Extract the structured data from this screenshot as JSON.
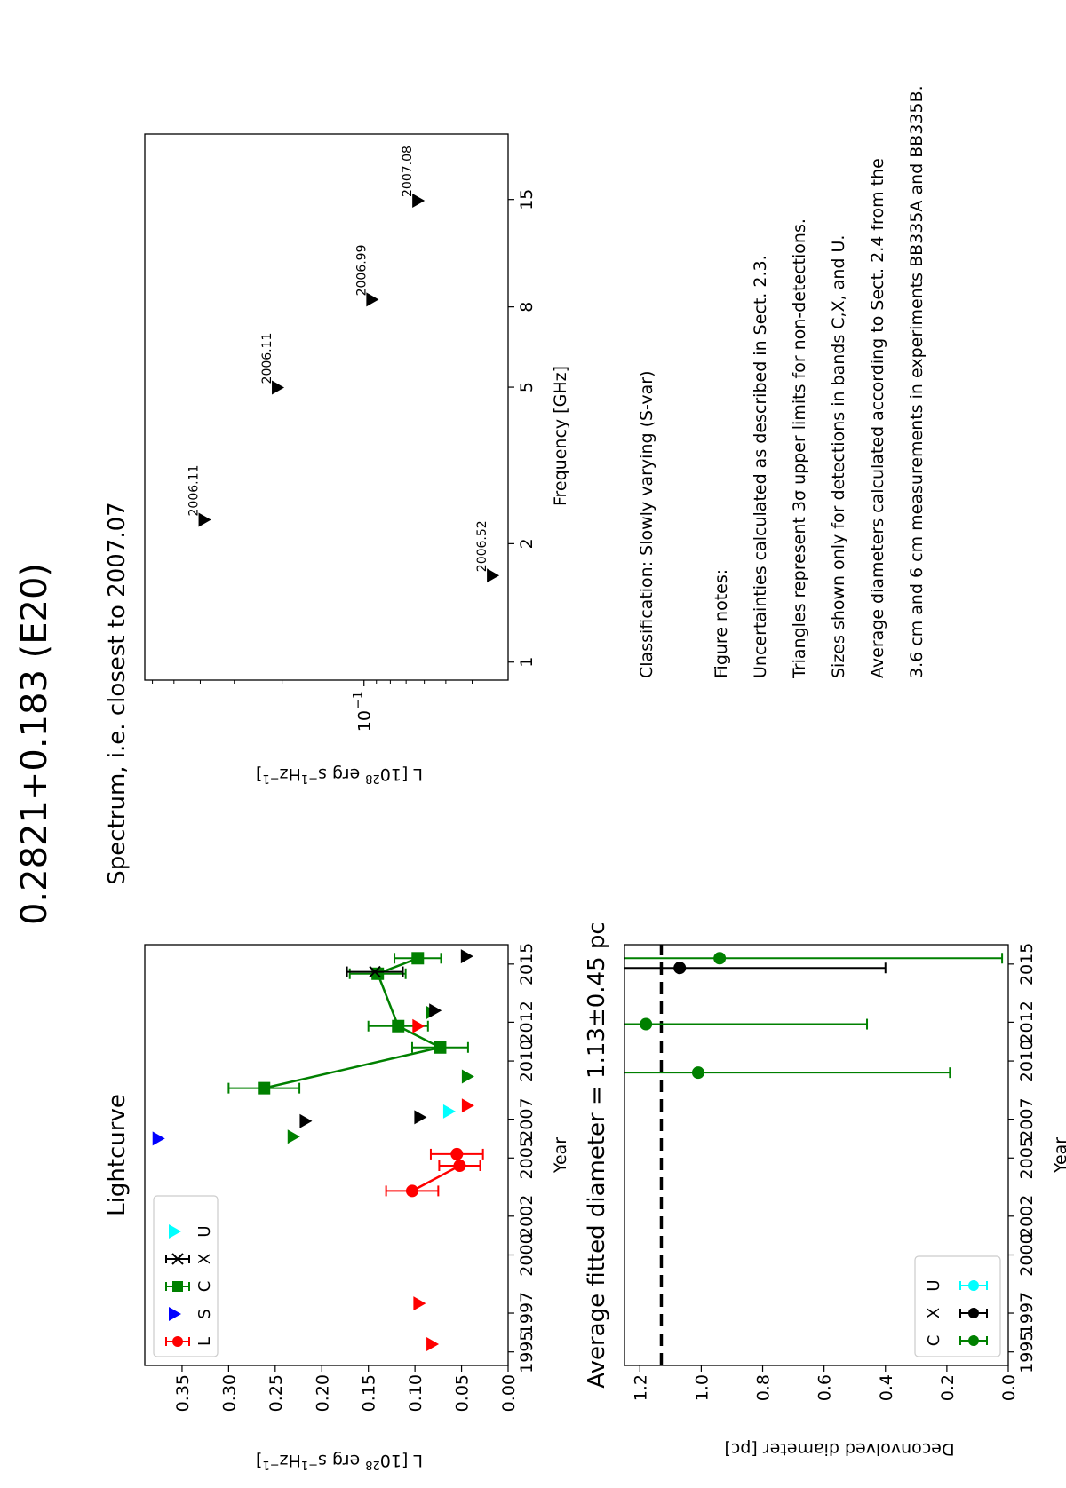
{
  "figure": {
    "title": "0.2821+0.183 (E20)",
    "orientation": "rotated 90 degrees counter-clockwise",
    "classification": "Classification: Slowly varying (S-var)",
    "notes_heading": "Figure notes:",
    "notes": [
      "Uncertainties calculated as described in Sect. 2.3.",
      "Triangles represent 3σ upper limits for non-detections.",
      "Sizes shown only for detections in bands C,X, and U.",
      "Average diameters calculated according to Sect. 2.4 from the",
      "3.6 cm and 6 cm measurements in experiments BB335A and BB335B."
    ]
  },
  "colors": {
    "L": "#ff0000",
    "S": "#0000ff",
    "C": "#008000",
    "X": "#000000",
    "U": "#00ffff"
  },
  "chart_data": [
    {
      "id": "lightcurve",
      "type": "scatter",
      "title": "Lightcurve",
      "xlabel": "Year",
      "ylabel": "L [10$^{28}$ erg s$^{-1}$Hz$^{-1}$]",
      "ylabel_parts": [
        "L [10",
        "28",
        " erg s",
        "−1",
        "Hz",
        "−1",
        "]"
      ],
      "xlim": [
        1994.3,
        2016.0
      ],
      "ylim": [
        0.0,
        0.39
      ],
      "xticks": [
        1995,
        1997,
        2000,
        2002,
        2005,
        2007,
        2010,
        2012,
        2015
      ],
      "yticks": [
        0.0,
        0.05,
        0.1,
        0.15,
        0.2,
        0.25,
        0.3,
        0.35
      ],
      "ytick_labels": [
        "0.00",
        "0.05",
        "0.10",
        "0.15",
        "0.20",
        "0.25",
        "0.30",
        "0.35"
      ],
      "legend": {
        "placement": "upper-left",
        "entries": [
          {
            "label": "L",
            "marker": "circle-errorbar",
            "band": "L"
          },
          {
            "label": "S",
            "marker": "triangle-down",
            "band": "S"
          },
          {
            "label": "C",
            "marker": "square-errorbar",
            "band": "C"
          },
          {
            "label": "X",
            "marker": "x-errorbar",
            "band": "X"
          },
          {
            "label": "U",
            "marker": "triangle-down",
            "band": "U"
          }
        ]
      },
      "series": [
        {
          "name": "L",
          "band": "L",
          "marker": "circle",
          "connected": true,
          "points": [
            {
              "x": 2003.3,
              "y": 0.103,
              "err": 0.028
            },
            {
              "x": 2004.6,
              "y": 0.052,
              "err": 0.022
            },
            {
              "x": 2005.2,
              "y": 0.055,
              "err": 0.028
            }
          ]
        },
        {
          "name": "C",
          "band": "C",
          "marker": "square",
          "connected": true,
          "points": [
            {
              "x": 2008.6,
              "y": 0.262,
              "err": 0.038
            },
            {
              "x": 2010.7,
              "y": 0.073,
              "err": 0.03
            },
            {
              "x": 2011.8,
              "y": 0.118,
              "err": 0.032
            },
            {
              "x": 2014.5,
              "y": 0.14,
              "err": 0.03
            },
            {
              "x": 2015.3,
              "y": 0.097,
              "err": 0.025
            }
          ]
        },
        {
          "name": "X",
          "band": "X",
          "marker": "x",
          "connected": false,
          "points": [
            {
              "x": 2014.6,
              "y": 0.143,
              "err": 0.03
            }
          ]
        }
      ],
      "upper_limits": [
        {
          "band": "L",
          "x": 1995.4,
          "y": 0.081
        },
        {
          "band": "L",
          "x": 1997.5,
          "y": 0.095
        },
        {
          "band": "L",
          "x": 2007.7,
          "y": 0.043
        },
        {
          "band": "L",
          "x": 2011.8,
          "y": 0.096
        },
        {
          "band": "S",
          "x": 2006.0,
          "y": 0.375
        },
        {
          "band": "C",
          "x": 2006.1,
          "y": 0.23
        },
        {
          "band": "C",
          "x": 2009.2,
          "y": 0.043
        },
        {
          "band": "C",
          "x": 2012.5,
          "y": 0.082
        },
        {
          "band": "X",
          "x": 2006.9,
          "y": 0.217
        },
        {
          "band": "X",
          "x": 2007.1,
          "y": 0.094
        },
        {
          "band": "X",
          "x": 2012.6,
          "y": 0.078
        },
        {
          "band": "X",
          "x": 2015.4,
          "y": 0.044
        },
        {
          "band": "U",
          "x": 2007.4,
          "y": 0.063
        }
      ]
    },
    {
      "id": "spectrum",
      "type": "scatter",
      "title": "Spectrum, i.e. closest to 2007.07",
      "xlabel": "Frequency [GHz]",
      "ylabel": "L [10$^{28}$ erg s$^{-1}$Hz$^{-1}$]",
      "ylabel_parts": [
        "L [10",
        "28",
        " erg s",
        "−1",
        "Hz",
        "−1",
        "]"
      ],
      "xscale": "log",
      "yscale": "log",
      "xlim": [
        0.9,
        22.0
      ],
      "ylim": [
        0.0295,
        0.64
      ],
      "xticks": [
        1,
        2,
        5,
        8,
        15
      ],
      "xtick_labels": [
        "1",
        "2",
        "5",
        "8",
        "15"
      ],
      "yticks_major": [
        0.1
      ],
      "ytick_major_label": "10",
      "ytick_major_exp": "−1",
      "yticks_minor": [
        0.04,
        0.05,
        0.06,
        0.07,
        0.08,
        0.09,
        0.2,
        0.3,
        0.4,
        0.5,
        0.6
      ],
      "upper_limits": [
        {
          "x": 1.66,
          "y": 0.0335,
          "label": "2006.52"
        },
        {
          "x": 2.3,
          "y": 0.385,
          "label": "2006.11"
        },
        {
          "x": 4.99,
          "y": 0.207,
          "label": "2006.11"
        },
        {
          "x": 8.35,
          "y": 0.093,
          "label": "2006.99"
        },
        {
          "x": 14.9,
          "y": 0.063,
          "label": "2007.08"
        }
      ]
    },
    {
      "id": "diameter",
      "type": "scatter",
      "title": "Average fitted diameter = 1.13±0.45 pc",
      "xlabel": "Year",
      "ylabel": "Deconvolved diameter [pc]",
      "xlim": [
        1994.3,
        2016.0
      ],
      "ylim": [
        0.0,
        1.25
      ],
      "xticks": [
        1995,
        1997,
        2000,
        2002,
        2005,
        2007,
        2010,
        2012,
        2015
      ],
      "yticks": [
        0.0,
        0.2,
        0.4,
        0.6,
        0.8,
        1.0,
        1.2
      ],
      "ytick_labels": [
        "0.0",
        "0.2",
        "0.4",
        "0.6",
        "0.8",
        "1.0",
        "1.2"
      ],
      "average": 1.13,
      "legend": {
        "placement": "lower-left",
        "entries": [
          {
            "label": "C",
            "band": "C"
          },
          {
            "label": "X",
            "band": "X"
          },
          {
            "label": "U",
            "band": "U"
          }
        ]
      },
      "series": [
        {
          "name": "C",
          "band": "C",
          "points": [
            {
              "x": 2009.4,
              "y": 1.01,
              "lo": 0.19,
              "hi": 1.4
            },
            {
              "x": 2011.9,
              "y": 1.18,
              "lo": 0.46,
              "hi": 1.6
            },
            {
              "x": 2015.3,
              "y": 0.94,
              "lo": 0.02,
              "hi": 1.4
            }
          ]
        },
        {
          "name": "X",
          "band": "X",
          "points": [
            {
              "x": 2014.8,
              "y": 1.07,
              "lo": 0.4,
              "hi": 1.6
            }
          ]
        }
      ]
    }
  ]
}
